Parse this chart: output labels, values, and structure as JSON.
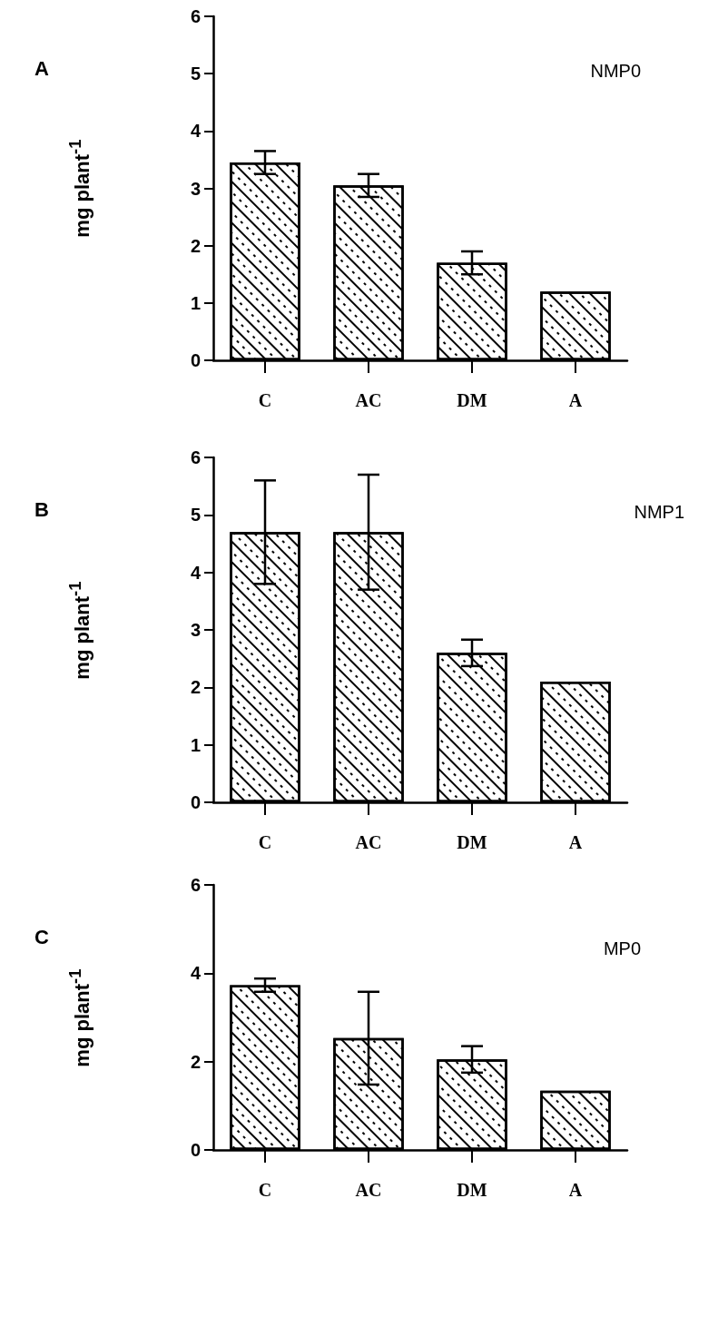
{
  "chart_data": [
    {
      "type": "bar",
      "title": "NMP0",
      "ylabel": "mg plant$^{-1}$",
      "annotations": [
        "A"
      ],
      "categories": [
        "C",
        "AC",
        "DM",
        "A"
      ],
      "values": [
        3.45,
        3.05,
        1.7,
        1.2
      ],
      "errors": [
        0.2,
        0.2,
        0.2,
        null
      ],
      "color": "#ffffff",
      "ylim": [
        0,
        6
      ],
      "yticks": [
        0,
        1,
        2,
        3,
        4,
        5,
        6
      ]
    },
    {
      "type": "bar",
      "title": "NMP1",
      "ylabel": "mg plant$^{-1}$",
      "annotations": [
        "B"
      ],
      "categories": [
        "C",
        "AC",
        "DM",
        "A"
      ],
      "values": [
        4.7,
        4.7,
        2.6,
        2.1
      ],
      "errors": [
        0.9,
        1.0,
        0.23,
        null
      ],
      "color": "#ffffff",
      "ylim": [
        0,
        6
      ],
      "yticks": [
        0,
        1,
        2,
        3,
        4,
        5,
        6
      ]
    },
    {
      "type": "bar",
      "title": "MP0",
      "ylabel": "mg plant$^{-1}$",
      "annotations": [
        "C"
      ],
      "categories": [
        "C",
        "AC",
        "DM",
        "A"
      ],
      "values": [
        3.73,
        2.53,
        2.05,
        1.34
      ],
      "errors": [
        0.15,
        1.05,
        0.3,
        null
      ],
      "color": "#ffffff",
      "ylim": [
        0,
        6
      ],
      "yticks": [
        0,
        2,
        4,
        6
      ]
    }
  ]
}
